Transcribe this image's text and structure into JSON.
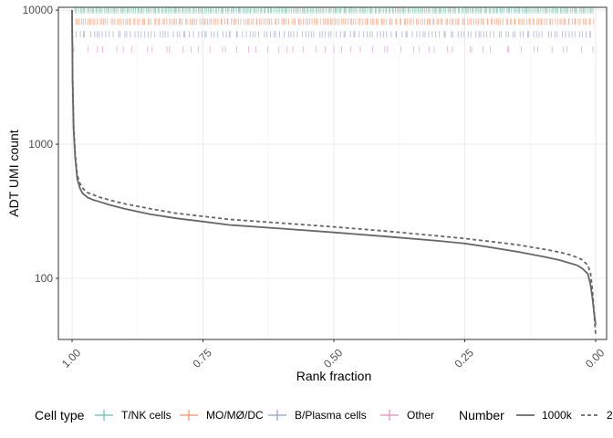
{
  "chart_data": {
    "type": "line",
    "title": "",
    "xlabel": "Rank fraction",
    "ylabel": "ADT UMI count",
    "x_reversed": true,
    "xlim": [
      1.0,
      0.0
    ],
    "x_ticks": [
      1.0,
      0.75,
      0.5,
      0.25,
      0.0
    ],
    "x_tick_labels": [
      "1.00",
      "0.75",
      "0.50",
      "0.25",
      "0.00"
    ],
    "y_scale": "log10",
    "ylim": [
      35,
      10500
    ],
    "y_ticks": [
      100,
      1000,
      10000
    ],
    "y_tick_labels": [
      "100",
      "1000",
      "10000"
    ],
    "grid": true,
    "series": [
      {
        "name": "1000k",
        "style": "solid",
        "color": "#666666",
        "x": [
          1.0,
          0.999,
          0.997,
          0.994,
          0.99,
          0.985,
          0.98,
          0.97,
          0.96,
          0.95,
          0.93,
          0.9,
          0.85,
          0.8,
          0.75,
          0.7,
          0.6,
          0.5,
          0.4,
          0.3,
          0.25,
          0.2,
          0.15,
          0.1,
          0.07,
          0.05,
          0.035,
          0.025,
          0.015,
          0.01,
          0.006,
          0.003,
          0.0
        ],
        "y": [
          10000,
          3000,
          1300,
          800,
          550,
          470,
          430,
          400,
          385,
          375,
          355,
          330,
          300,
          280,
          265,
          250,
          235,
          220,
          205,
          190,
          182,
          170,
          158,
          145,
          137,
          130,
          125,
          118,
          108,
          90,
          70,
          55,
          45
        ]
      },
      {
        "name": "2",
        "style": "dashed",
        "color": "#666666",
        "x": [
          1.0,
          0.999,
          0.997,
          0.994,
          0.99,
          0.985,
          0.98,
          0.97,
          0.96,
          0.95,
          0.93,
          0.9,
          0.85,
          0.8,
          0.75,
          0.7,
          0.6,
          0.5,
          0.4,
          0.3,
          0.25,
          0.2,
          0.15,
          0.1,
          0.07,
          0.05,
          0.035,
          0.025,
          0.015,
          0.01,
          0.006,
          0.003,
          0.0
        ],
        "y": [
          10000,
          3200,
          1400,
          850,
          590,
          510,
          470,
          435,
          420,
          405,
          385,
          360,
          330,
          305,
          290,
          275,
          258,
          242,
          225,
          207,
          198,
          188,
          178,
          165,
          157,
          150,
          143,
          137,
          125,
          110,
          80,
          55,
          38
        ]
      }
    ],
    "rug": [
      {
        "name": "T/NK cells",
        "color": "#66c2a5",
        "y": 10000,
        "count": 300
      },
      {
        "name": "MO/MØ/DC",
        "color": "#fc8d62",
        "y": 8200,
        "count": 250
      },
      {
        "name": "B/Plasma cells",
        "color": "#8da0cb",
        "y": 6600,
        "count": 150
      },
      {
        "name": "Other",
        "color": "#e78ac3",
        "y": 5100,
        "count": 55
      }
    ],
    "legend_position": "bottom",
    "legend": {
      "cell_type_title": "Cell type",
      "cell_types": [
        {
          "label": "T/NK cells",
          "color": "#66c2a5"
        },
        {
          "label": "MO/MØ/DC",
          "color": "#fc8d62"
        },
        {
          "label": "B/Plasma cells",
          "color": "#8da0cb"
        },
        {
          "label": "Other",
          "color": "#e78ac3"
        }
      ],
      "number_title": "Number",
      "numbers": [
        {
          "label": "1000k",
          "style": "solid"
        },
        {
          "label": "2",
          "style": "dashed"
        }
      ]
    }
  }
}
